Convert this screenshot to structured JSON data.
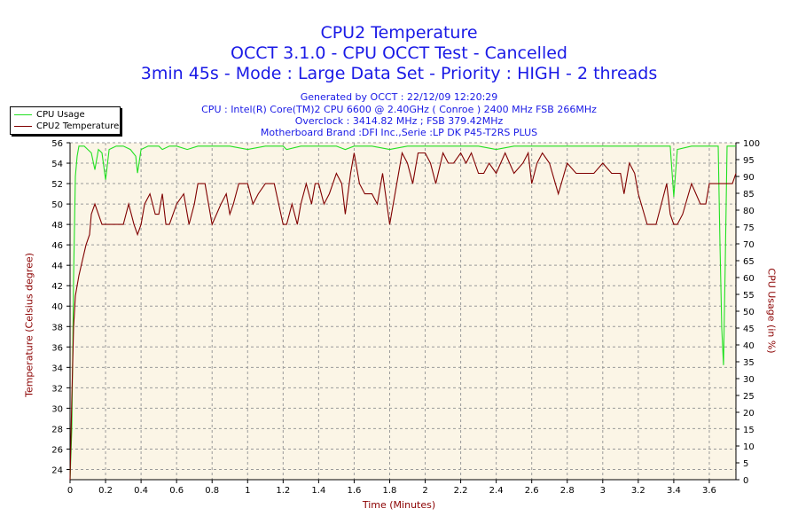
{
  "chart_data": {
    "type": "line",
    "title": "CPU2 Temperature",
    "subtitle_lines": [
      "OCCT 3.1.0 - CPU OCCT Test - Cancelled",
      "3min 45s - Mode : Large Data Set - Priority : HIGH - 2 threads"
    ],
    "info_lines": [
      "Generated by OCCT : 22/12/09 12:20:29",
      "CPU : Intel(R) Core(TM)2 CPU 6600 @ 2.40GHz ( Conroe ) 2400 MHz FSB 266MHz",
      "Overclock : 3414.82 MHz ; FSB 379.42MHz",
      "Motherboard Brand :DFI Inc.,Serie :LP DK P45-T2RS PLUS"
    ],
    "xlabel": "Time (Minutes)",
    "ylabel_left": "Temperature (Celsius degree)",
    "ylabel_right": "CPU Usage (in %)",
    "xlim": [
      0,
      3.75
    ],
    "ylim_left": [
      23,
      56
    ],
    "ylim_right": [
      0,
      100
    ],
    "x_ticks": [
      "0",
      "0.2",
      "0.4",
      "0.6",
      "0.8",
      "1",
      "1.2",
      "1.4",
      "1.6",
      "1.8",
      "2",
      "2.2",
      "2.4",
      "2.6",
      "2.8",
      "3",
      "3.2",
      "3.4",
      "3.6"
    ],
    "y_ticks_left": [
      "24",
      "26",
      "28",
      "30",
      "32",
      "34",
      "36",
      "38",
      "40",
      "42",
      "44",
      "46",
      "48",
      "50",
      "52",
      "54",
      "56"
    ],
    "y_ticks_right": [
      "0",
      "5",
      "10",
      "15",
      "20",
      "25",
      "30",
      "35",
      "40",
      "45",
      "50",
      "55",
      "60",
      "65",
      "70",
      "75",
      "80",
      "85",
      "90",
      "95",
      "100"
    ],
    "grid": true,
    "legend": "top-left",
    "colors": {
      "cpu_usage": "#22e022",
      "cpu2_temp": "#800000",
      "plot_bg": "#fbf5e6",
      "title": "#1a1ae6"
    },
    "series": [
      {
        "name": "CPU Usage",
        "axis": "right",
        "x": [
          0,
          0.01,
          0.02,
          0.03,
          0.04,
          0.05,
          0.06,
          0.08,
          0.1,
          0.12,
          0.14,
          0.16,
          0.18,
          0.2,
          0.22,
          0.26,
          0.3,
          0.34,
          0.37,
          0.38,
          0.4,
          0.44,
          0.5,
          0.52,
          0.56,
          0.6,
          0.66,
          0.72,
          0.8,
          0.9,
          1.0,
          1.1,
          1.2,
          1.22,
          1.3,
          1.4,
          1.5,
          1.55,
          1.6,
          1.7,
          1.8,
          1.9,
          1.95,
          2.0,
          2.1,
          2.2,
          2.3,
          2.4,
          2.5,
          2.6,
          2.7,
          2.8,
          2.9,
          3.0,
          3.1,
          3.2,
          3.3,
          3.38,
          3.4,
          3.42,
          3.5,
          3.55,
          3.6,
          3.62,
          3.65,
          3.66,
          3.67,
          3.68,
          3.69,
          3.7,
          3.72,
          3.75
        ],
        "values": [
          0,
          15,
          60,
          90,
          96,
          99,
          99,
          99,
          98,
          97,
          92,
          98,
          97,
          89,
          98,
          99,
          99,
          98,
          96,
          91,
          98,
          99,
          99,
          98,
          99,
          99,
          98,
          99,
          99,
          99,
          98,
          99,
          99,
          98,
          99,
          99,
          99,
          98,
          99,
          99,
          98,
          99,
          99,
          99,
          99,
          99,
          99,
          98,
          99,
          99,
          99,
          99,
          99,
          99,
          99,
          99,
          99,
          99,
          84,
          98,
          99,
          99,
          99,
          99,
          99,
          70,
          45,
          34,
          65,
          99,
          99,
          99
        ]
      },
      {
        "name": "CPU2 Temperature",
        "axis": "left",
        "x": [
          0,
          0.01,
          0.02,
          0.03,
          0.05,
          0.07,
          0.09,
          0.11,
          0.12,
          0.14,
          0.16,
          0.18,
          0.2,
          0.22,
          0.25,
          0.3,
          0.33,
          0.36,
          0.38,
          0.4,
          0.42,
          0.45,
          0.48,
          0.5,
          0.52,
          0.54,
          0.56,
          0.6,
          0.64,
          0.67,
          0.7,
          0.72,
          0.76,
          0.8,
          0.85,
          0.88,
          0.9,
          0.92,
          0.95,
          1.0,
          1.03,
          1.06,
          1.1,
          1.15,
          1.2,
          1.22,
          1.25,
          1.28,
          1.3,
          1.33,
          1.36,
          1.38,
          1.4,
          1.43,
          1.46,
          1.5,
          1.53,
          1.55,
          1.58,
          1.6,
          1.63,
          1.66,
          1.7,
          1.73,
          1.76,
          1.8,
          1.83,
          1.85,
          1.87,
          1.9,
          1.93,
          1.96,
          2.0,
          2.03,
          2.06,
          2.1,
          2.13,
          2.16,
          2.2,
          2.23,
          2.26,
          2.3,
          2.33,
          2.36,
          2.4,
          2.45,
          2.5,
          2.55,
          2.58,
          2.6,
          2.63,
          2.66,
          2.7,
          2.75,
          2.8,
          2.85,
          2.9,
          2.95,
          3.0,
          3.05,
          3.1,
          3.12,
          3.15,
          3.18,
          3.2,
          3.25,
          3.3,
          3.33,
          3.36,
          3.38,
          3.4,
          3.42,
          3.45,
          3.5,
          3.55,
          3.58,
          3.6,
          3.65,
          3.7,
          3.73,
          3.75
        ],
        "values": [
          23,
          31,
          38,
          41,
          43,
          44.5,
          46,
          47,
          49,
          50,
          49,
          48,
          48,
          48,
          48,
          48,
          50,
          48,
          47,
          48,
          50,
          51,
          49,
          49,
          51,
          48,
          48,
          50,
          51,
          48,
          50,
          52,
          52,
          48,
          50,
          51,
          49,
          50,
          52,
          52,
          50,
          51,
          52,
          52,
          48,
          48,
          50,
          48,
          50,
          52,
          50,
          52,
          52,
          50,
          51,
          53,
          52,
          49,
          53,
          55,
          52,
          51,
          51,
          50,
          53,
          48,
          51,
          53,
          55,
          54,
          52,
          55,
          55,
          54,
          52,
          55,
          54,
          54,
          55,
          54,
          55,
          53,
          53,
          54,
          53,
          55,
          53,
          54,
          55,
          52,
          54,
          55,
          54,
          51,
          54,
          53,
          53,
          53,
          54,
          53,
          53,
          51,
          54,
          53,
          51,
          48,
          48,
          50,
          52,
          49,
          48,
          48,
          49,
          52,
          50,
          50,
          52,
          52,
          52,
          52,
          53
        ]
      }
    ]
  }
}
